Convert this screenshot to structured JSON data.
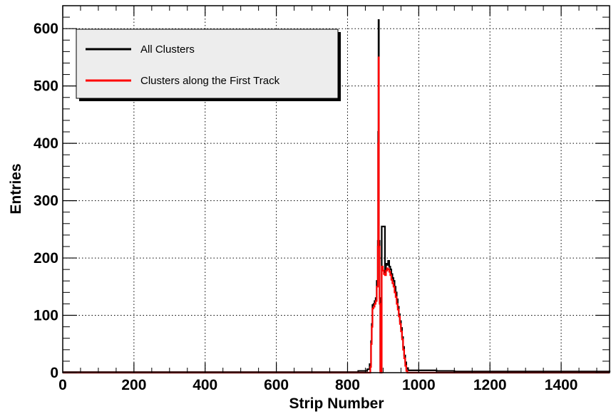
{
  "chart_data": {
    "type": "histogram",
    "title": "",
    "xlabel": "Strip Number",
    "ylabel": "Entries",
    "xlim": [
      0,
      1536
    ],
    "ylim": [
      0,
      640
    ],
    "xticks": [
      0,
      200,
      400,
      600,
      800,
      1000,
      1200,
      1400
    ],
    "yticks": [
      0,
      100,
      200,
      300,
      400,
      500,
      600
    ],
    "xtick_labels": [
      "0",
      "200",
      "400",
      "600",
      "800",
      "1000",
      "1200",
      "1400"
    ],
    "ytick_labels": [
      "0",
      "100",
      "200",
      "300",
      "400",
      "500",
      "600"
    ],
    "grid": true,
    "legend_position": "top-left",
    "series": [
      {
        "name": "All Clusters",
        "color": "#000000",
        "points": [
          [
            0,
            1
          ],
          [
            800,
            1
          ],
          [
            830,
            3
          ],
          [
            855,
            6
          ],
          [
            862,
            15
          ],
          [
            866,
            55
          ],
          [
            868,
            85
          ],
          [
            870,
            118
          ],
          [
            873,
            120
          ],
          [
            876,
            125
          ],
          [
            879,
            130
          ],
          [
            882,
            160
          ],
          [
            885,
            230
          ],
          [
            886,
            420
          ],
          [
            887,
            615
          ],
          [
            888,
            230
          ],
          [
            890,
            130
          ],
          [
            892,
            4
          ],
          [
            895,
            4
          ],
          [
            896,
            255
          ],
          [
            899,
            255
          ],
          [
            902,
            255
          ],
          [
            905,
            175
          ],
          [
            908,
            190
          ],
          [
            911,
            188
          ],
          [
            914,
            195
          ],
          [
            917,
            185
          ],
          [
            920,
            180
          ],
          [
            923,
            172
          ],
          [
            926,
            165
          ],
          [
            929,
            160
          ],
          [
            932,
            150
          ],
          [
            935,
            140
          ],
          [
            938,
            128
          ],
          [
            941,
            115
          ],
          [
            944,
            102
          ],
          [
            947,
            90
          ],
          [
            950,
            78
          ],
          [
            953,
            62
          ],
          [
            956,
            45
          ],
          [
            959,
            30
          ],
          [
            962,
            18
          ],
          [
            965,
            8
          ],
          [
            970,
            4
          ],
          [
            1000,
            4
          ],
          [
            1050,
            3
          ],
          [
            1100,
            2
          ],
          [
            1536,
            1
          ]
        ]
      },
      {
        "name": "Clusters along the First Track",
        "color": "#ff0000",
        "points": [
          [
            0,
            0
          ],
          [
            860,
            0
          ],
          [
            864,
            10
          ],
          [
            866,
            50
          ],
          [
            868,
            80
          ],
          [
            870,
            112
          ],
          [
            873,
            115
          ],
          [
            876,
            120
          ],
          [
            879,
            125
          ],
          [
            882,
            150
          ],
          [
            885,
            220
          ],
          [
            886,
            400
          ],
          [
            887,
            550
          ],
          [
            888,
            220
          ],
          [
            890,
            120
          ],
          [
            892,
            0
          ],
          [
            895,
            0
          ],
          [
            896,
            185
          ],
          [
            899,
            178
          ],
          [
            902,
            172
          ],
          [
            905,
            170
          ],
          [
            908,
            178
          ],
          [
            911,
            182
          ],
          [
            914,
            180
          ],
          [
            917,
            176
          ],
          [
            920,
            170
          ],
          [
            923,
            162
          ],
          [
            926,
            156
          ],
          [
            929,
            150
          ],
          [
            932,
            140
          ],
          [
            935,
            132
          ],
          [
            938,
            120
          ],
          [
            941,
            110
          ],
          [
            944,
            98
          ],
          [
            947,
            85
          ],
          [
            950,
            72
          ],
          [
            953,
            58
          ],
          [
            956,
            40
          ],
          [
            959,
            25
          ],
          [
            962,
            12
          ],
          [
            965,
            3
          ],
          [
            968,
            0
          ],
          [
            1536,
            0
          ]
        ]
      }
    ]
  }
}
